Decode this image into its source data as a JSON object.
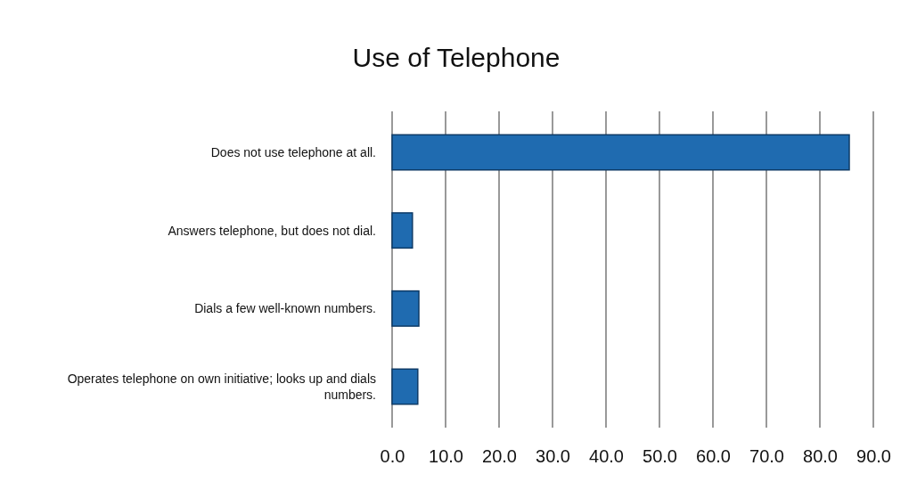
{
  "chart_data": {
    "type": "bar",
    "orientation": "horizontal",
    "title": "Use of Telephone",
    "categories": [
      "Does not use telephone at all.",
      "Answers telephone, but does not dial.",
      "Dials a few well-known numbers.",
      "Operates telephone on own initiative; looks up and dials numbers."
    ],
    "values": [
      85.5,
      3.8,
      5,
      4.8
    ],
    "color": "#1f6bb0",
    "xlim": [
      0,
      90
    ],
    "xticks": [
      {
        "value": 0,
        "label": "0.0"
      },
      {
        "value": 10,
        "label": "10.0"
      },
      {
        "value": 20,
        "label": "20.0"
      },
      {
        "value": 30,
        "label": "30.0"
      },
      {
        "value": 40,
        "label": "40.0"
      },
      {
        "value": 50,
        "label": "50.0"
      },
      {
        "value": 60,
        "label": "60.0"
      },
      {
        "value": 70,
        "label": "70.0"
      },
      {
        "value": 80,
        "label": "80.0"
      },
      {
        "value": 90,
        "label": "90.0"
      }
    ],
    "grid": "x"
  }
}
